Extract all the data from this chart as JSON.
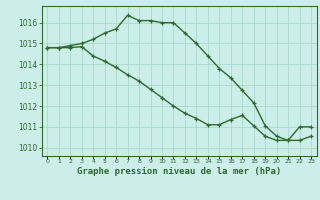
{
  "title": "Graphe pression niveau de la mer (hPa)",
  "background_color": "#cceee8",
  "line_color": "#2d6a2d",
  "grid_color": "#aad8cc",
  "x_labels": [
    "0",
    "1",
    "2",
    "3",
    "4",
    "5",
    "6",
    "7",
    "8",
    "9",
    "10",
    "11",
    "12",
    "13",
    "14",
    "15",
    "16",
    "17",
    "18",
    "19",
    "20",
    "21",
    "22",
    "23"
  ],
  "ylim": [
    1009.6,
    1016.8
  ],
  "yticks": [
    1010,
    1011,
    1012,
    1013,
    1014,
    1015,
    1016
  ],
  "line1_x": [
    0,
    1,
    2,
    3,
    4,
    5,
    6,
    7,
    8,
    9,
    10,
    11,
    12,
    13,
    14,
    15,
    16,
    17,
    18,
    19,
    20,
    21,
    22,
    23
  ],
  "line1_y": [
    1014.8,
    1014.8,
    1014.9,
    1015.0,
    1015.2,
    1015.5,
    1015.7,
    1016.35,
    1016.1,
    1016.1,
    1016.0,
    1016.0,
    1015.5,
    1015.0,
    1014.4,
    1013.8,
    1013.35,
    1012.75,
    1012.15,
    1011.05,
    1010.55,
    1010.35,
    1010.35,
    1010.55
  ],
  "line2_x": [
    0,
    1,
    2,
    3,
    4,
    5,
    6,
    7,
    8,
    9,
    10,
    11,
    12,
    13,
    14,
    15,
    16,
    17,
    18,
    19,
    20,
    21,
    22,
    23
  ],
  "line2_y": [
    1014.8,
    1014.8,
    1014.8,
    1014.85,
    1014.4,
    1014.15,
    1013.85,
    1013.5,
    1013.2,
    1012.8,
    1012.4,
    1012.0,
    1011.65,
    1011.4,
    1011.1,
    1011.1,
    1011.35,
    1011.55,
    1011.05,
    1010.55,
    1010.35,
    1010.35,
    1011.0,
    1011.0
  ]
}
